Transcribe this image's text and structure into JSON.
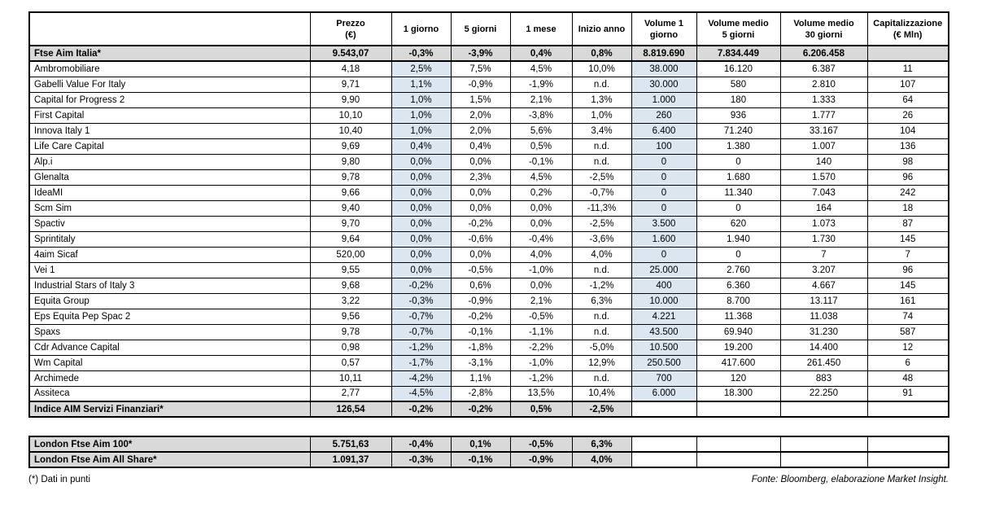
{
  "colors": {
    "section_gray": "#d9d9d9",
    "highlight_blue": "#dce6f1",
    "border": "#000000"
  },
  "table": {
    "headers": [
      {
        "lines": [
          "Prezzo",
          "(€)"
        ]
      },
      {
        "lines": [
          "1 giorno"
        ]
      },
      {
        "lines": [
          "5 giorni"
        ]
      },
      {
        "lines": [
          "1 mese"
        ]
      },
      {
        "lines": [
          "Inizio anno"
        ]
      },
      {
        "lines": [
          "Volume 1",
          "giorno"
        ],
        "blue": true
      },
      {
        "lines": [
          "Volume medio",
          "5 giorni"
        ]
      },
      {
        "lines": [
          "Volume medio",
          "30 giorni"
        ]
      },
      {
        "lines": [
          "Capitalizzazione",
          "(€ Mln)"
        ]
      }
    ],
    "rows": [
      {
        "name": "Ftse Aim Italia*",
        "type": "index",
        "fullGray": true,
        "values": [
          "9.543,07",
          "-0,3%",
          "-3,9%",
          "0,4%",
          "0,8%",
          "8.819.690",
          "7.834.449",
          "6.206.458",
          ""
        ]
      },
      {
        "name": "Ambromobiliare",
        "type": "stock",
        "values": [
          "4,18",
          "2,5%",
          "7,5%",
          "4,5%",
          "10,0%",
          "38.000",
          "16.120",
          "6.387",
          "11"
        ]
      },
      {
        "name": "Gabelli Value For Italy",
        "type": "stock",
        "values": [
          "9,71",
          "1,1%",
          "-0,9%",
          "-1,9%",
          "n.d.",
          "30.000",
          "580",
          "2.810",
          "107"
        ]
      },
      {
        "name": "Capital for Progress 2",
        "type": "stock",
        "values": [
          "9,90",
          "1,0%",
          "1,5%",
          "2,1%",
          "1,3%",
          "1.000",
          "180",
          "1.333",
          "64"
        ]
      },
      {
        "name": "First Capital",
        "type": "stock",
        "values": [
          "10,10",
          "1,0%",
          "2,0%",
          "-3,8%",
          "1,0%",
          "260",
          "936",
          "1.777",
          "26"
        ]
      },
      {
        "name": "Innova Italy 1",
        "type": "stock",
        "values": [
          "10,40",
          "1,0%",
          "2,0%",
          "5,6%",
          "3,4%",
          "6.400",
          "71.240",
          "33.167",
          "104"
        ]
      },
      {
        "name": "Life Care Capital",
        "type": "stock",
        "values": [
          "9,69",
          "0,4%",
          "0,4%",
          "0,5%",
          "n.d.",
          "100",
          "1.380",
          "1.007",
          "136"
        ]
      },
      {
        "name": "Alp.i",
        "type": "stock",
        "values": [
          "9,80",
          "0,0%",
          "0,0%",
          "-0,1%",
          "n.d.",
          "0",
          "0",
          "140",
          "98"
        ]
      },
      {
        "name": "Glenalta",
        "type": "stock",
        "values": [
          "9,78",
          "0,0%",
          "2,3%",
          "4,5%",
          "-2,5%",
          "0",
          "1.680",
          "1.570",
          "96"
        ]
      },
      {
        "name": "IdeaMI",
        "type": "stock",
        "values": [
          "9,66",
          "0,0%",
          "0,0%",
          "0,2%",
          "-0,7%",
          "0",
          "11.340",
          "7.043",
          "242"
        ]
      },
      {
        "name": "Scm Sim",
        "type": "stock",
        "values": [
          "9,40",
          "0,0%",
          "0,0%",
          "0,0%",
          "-11,3%",
          "0",
          "0",
          "164",
          "18"
        ]
      },
      {
        "name": "Spactiv",
        "type": "stock",
        "values": [
          "9,70",
          "0,0%",
          "-0,2%",
          "0,0%",
          "-2,5%",
          "3.500",
          "620",
          "1.073",
          "87"
        ]
      },
      {
        "name": "Sprintitaly",
        "type": "stock",
        "values": [
          "9,64",
          "0,0%",
          "-0,6%",
          "-0,4%",
          "-3,6%",
          "1.600",
          "1.940",
          "1.730",
          "145"
        ]
      },
      {
        "name": "4aim Sicaf",
        "type": "stock",
        "values": [
          "520,00",
          "0,0%",
          "0,0%",
          "4,0%",
          "4,0%",
          "0",
          "0",
          "7",
          "7"
        ]
      },
      {
        "name": "Vei 1",
        "type": "stock",
        "values": [
          "9,55",
          "0,0%",
          "-0,5%",
          "-1,0%",
          "n.d.",
          "25.000",
          "2.760",
          "3.207",
          "96"
        ]
      },
      {
        "name": "Industrial Stars of Italy 3",
        "type": "stock",
        "values": [
          "9,68",
          "-0,2%",
          "0,6%",
          "0,0%",
          "-1,2%",
          "400",
          "6.360",
          "4.667",
          "145"
        ]
      },
      {
        "name": "Equita Group",
        "type": "stock",
        "values": [
          "3,22",
          "-0,3%",
          "-0,9%",
          "2,1%",
          "6,3%",
          "10.000",
          "8.700",
          "13.117",
          "161"
        ]
      },
      {
        "name": "Eps Equita Pep Spac 2",
        "type": "stock",
        "values": [
          "9,56",
          "-0,7%",
          "-0,2%",
          "-0,5%",
          "n.d.",
          "4.221",
          "11.368",
          "11.038",
          "74"
        ]
      },
      {
        "name": "Spaxs",
        "type": "stock",
        "values": [
          "9,78",
          "-0,7%",
          "-0,1%",
          "-1,1%",
          "n.d.",
          "43.500",
          "69.940",
          "31.230",
          "587"
        ]
      },
      {
        "name": "Cdr Advance Capital",
        "type": "stock",
        "values": [
          "0,98",
          "-1,2%",
          "-1,8%",
          "-2,2%",
          "-5,0%",
          "10.500",
          "19.200",
          "14.400",
          "12"
        ]
      },
      {
        "name": "Wm Capital",
        "type": "stock",
        "values": [
          "0,57",
          "-1,7%",
          "-3,1%",
          "-1,0%",
          "12,9%",
          "250.500",
          "417.600",
          "261.450",
          "6"
        ]
      },
      {
        "name": "Archimede",
        "type": "stock",
        "values": [
          "10,11",
          "-4,2%",
          "1,1%",
          "-1,2%",
          "n.d.",
          "700",
          "120",
          "883",
          "48"
        ]
      },
      {
        "name": "Assiteca",
        "type": "stock",
        "values": [
          "2,77",
          "-4,5%",
          "-2,8%",
          "13,5%",
          "10,4%",
          "6.000",
          "18.300",
          "22.250",
          "91"
        ]
      },
      {
        "name": "Indice AIM Servizi Finanziari*",
        "type": "index",
        "fullGray": false,
        "values": [
          "126,54",
          "-0,2%",
          "-0,2%",
          "0,5%",
          "-2,5%",
          "",
          "",
          "",
          ""
        ]
      }
    ],
    "london_rows": [
      {
        "name": "London Ftse Aim 100*",
        "type": "index",
        "fullGray": false,
        "values": [
          "5.751,63",
          "-0,4%",
          "0,1%",
          "-0,5%",
          "6,3%",
          "",
          "",
          "",
          ""
        ]
      },
      {
        "name": "London Ftse Aim All Share*",
        "type": "index",
        "fullGray": false,
        "values": [
          "1.091,37",
          "-0,3%",
          "-0,1%",
          "-0,9%",
          "4,0%",
          "",
          "",
          "",
          ""
        ]
      }
    ]
  },
  "footnote": "(*) Dati in punti",
  "source": "Fonte: Bloomberg, elaborazione Market Insight."
}
